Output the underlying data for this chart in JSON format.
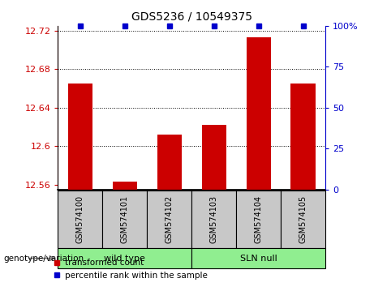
{
  "title": "GDS5236 / 10549375",
  "categories": [
    "GSM574100",
    "GSM574101",
    "GSM574102",
    "GSM574103",
    "GSM574104",
    "GSM574105"
  ],
  "red_values": [
    12.665,
    12.563,
    12.612,
    12.622,
    12.713,
    12.665
  ],
  "blue_values": [
    100,
    100,
    100,
    100,
    100,
    100
  ],
  "ylim_left": [
    12.555,
    12.725
  ],
  "ylim_right": [
    0,
    100
  ],
  "yticks_left": [
    12.56,
    12.6,
    12.64,
    12.68,
    12.72
  ],
  "ytick_labels_left": [
    "12.56",
    "12.6",
    "12.64",
    "12.68",
    "12.72"
  ],
  "ytick_labels_right": [
    "0",
    "25",
    "50",
    "75",
    "100%"
  ],
  "yticks_right": [
    0,
    25,
    50,
    75,
    100
  ],
  "group_labels": [
    "wild type",
    "SLN null"
  ],
  "group_ranges": [
    [
      0,
      2
    ],
    [
      3,
      5
    ]
  ],
  "group_label_prefix": "genotype/variation",
  "legend_red": "transformed count",
  "legend_blue": "percentile rank within the sample",
  "bar_color": "#cc0000",
  "dot_color": "#0000cc",
  "bg_color": "#c8c8c8",
  "green_color": "#90ee90",
  "bar_width": 0.55
}
